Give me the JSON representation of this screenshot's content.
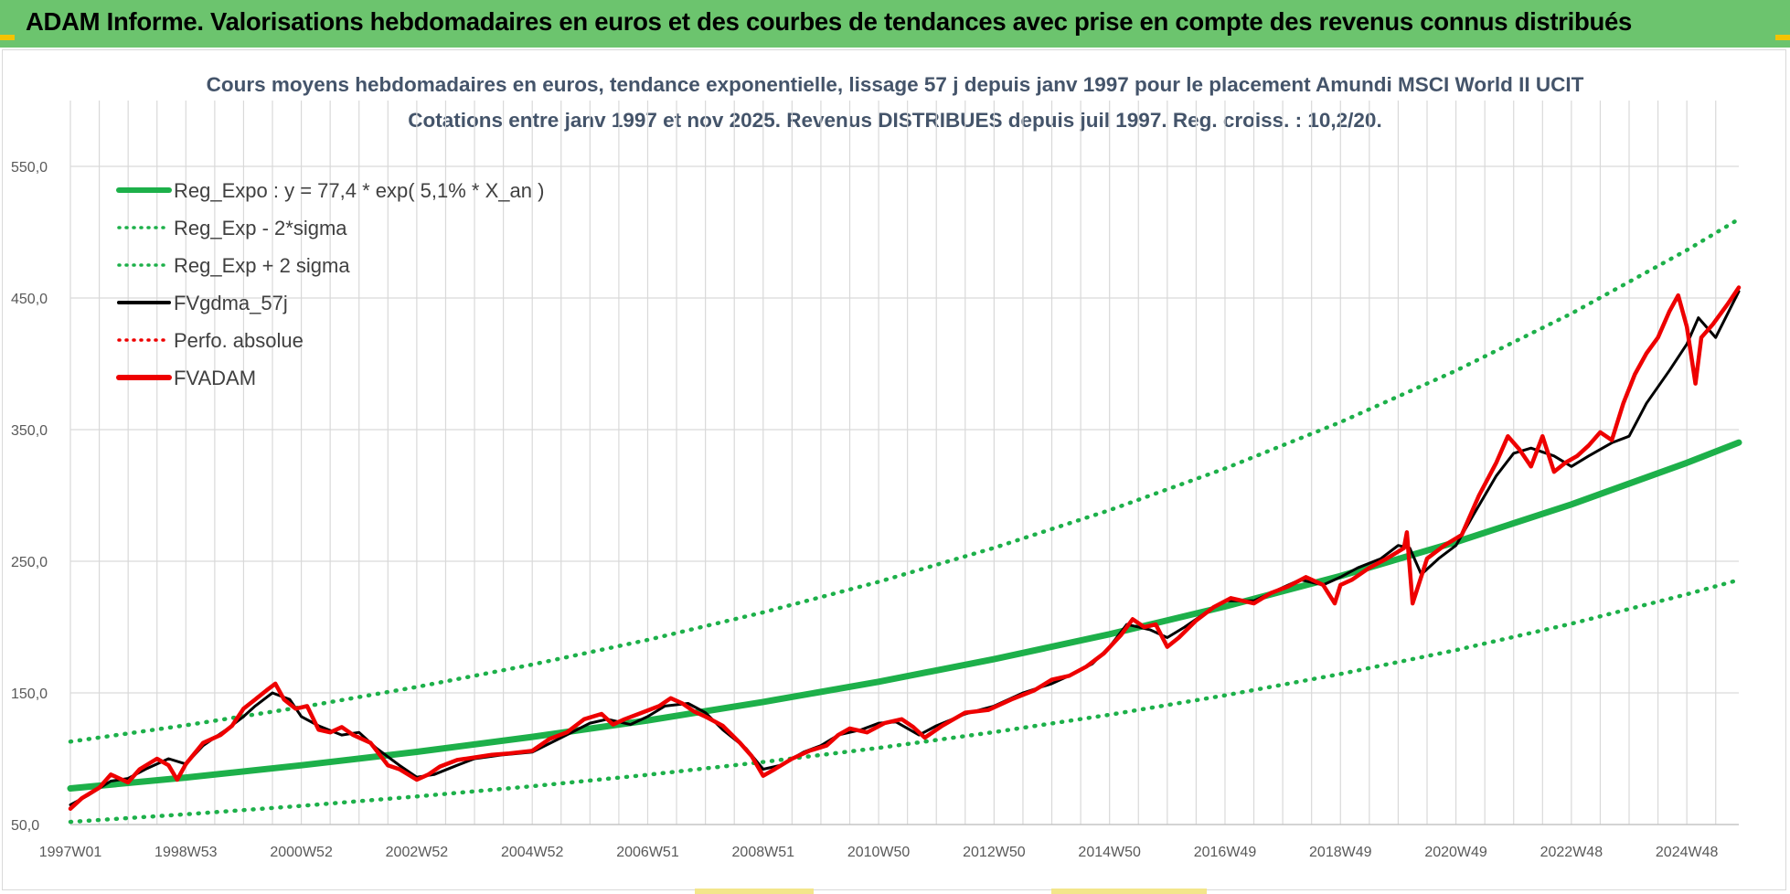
{
  "header": {
    "title": "ADAM Informe. Valorisations hebdomadaires en euros et des courbes de tendances avec prise en compte des revenus connus distribués"
  },
  "colors": {
    "header_bg": "#6cc46e",
    "trend_green": "#1db04a",
    "fv_red": "#ee0000",
    "gdma_black": "#000000",
    "grid": "#d9d9d9",
    "title_text": "#44546a"
  },
  "chart_data": {
    "type": "line",
    "title": "Cours moyens hebdomadaires en euros, tendance exponentielle, lissage 57 j depuis janv 1997 pour le placement Amundi MSCI World II UCIT",
    "subtitle": "Cotations entre janv 1997 et nov 2025. Revenus DISTRIBUES depuis juil 1997. Reg. croiss. : 10,2/20.",
    "xlabel": "",
    "ylabel": "",
    "x_tick_labels": [
      "1997W01",
      "1998W53",
      "2000W52",
      "2002W52",
      "2004W52",
      "2006W51",
      "2008W51",
      "2010W50",
      "2012W50",
      "2014W50",
      "2016W49",
      "2018W49",
      "2020W49",
      "2022W48",
      "2024W48"
    ],
    "x_tick_years": [
      1997.0,
      1999.0,
      2001.0,
      2003.0,
      2005.0,
      2007.0,
      2009.0,
      2011.0,
      2013.0,
      2015.0,
      2017.0,
      2019.0,
      2021.0,
      2023.0,
      2025.0
    ],
    "xlim": [
      1997.0,
      2025.9
    ],
    "y_tick_labels": [
      "50,0",
      "150,0",
      "250,0",
      "350,0",
      "450,0",
      "550,0"
    ],
    "y_ticks": [
      50,
      150,
      250,
      350,
      450,
      550
    ],
    "ylim": [
      50,
      600
    ],
    "grid": true,
    "legend_position": "top-left",
    "legend": [
      {
        "label": "Reg_Expo : y = 77,4 * exp( 5,1% *  X_an )",
        "color": "#1db04a",
        "style": "solid-thick"
      },
      {
        "label": "Reg_Exp - 2*sigma",
        "color": "#1db04a",
        "style": "dotted"
      },
      {
        "label": "Reg_Exp + 2 sigma",
        "color": "#1db04a",
        "style": "dotted"
      },
      {
        "label": "FVgdma_57j",
        "color": "#000000",
        "style": "solid"
      },
      {
        "label": "Perfo. absolue",
        "color": "#ee0000",
        "style": "dotted"
      },
      {
        "label": "FVADAM",
        "color": "#ee0000",
        "style": "solid-thick"
      }
    ],
    "series": [
      {
        "name": "Reg_Expo : y = 77,4 * exp( 5,1% *  X_an )",
        "x": [
          1997.0,
          1999.0,
          2001.0,
          2003.0,
          2005.0,
          2007.0,
          2009.0,
          2011.0,
          2013.0,
          2015.0,
          2017.0,
          2019.0,
          2021.0,
          2023.0,
          2025.0,
          2025.9
        ],
        "y": [
          77.4,
          85.7,
          95.0,
          105.2,
          116.6,
          129.1,
          143.1,
          158.5,
          175.6,
          194.6,
          215.6,
          238.8,
          264.6,
          293.2,
          324.8,
          340.2
        ]
      },
      {
        "name": "Reg_Exp - 2*sigma",
        "x": [
          1997.0,
          1999.0,
          2001.0,
          2003.0,
          2005.0,
          2007.0,
          2009.0,
          2011.0,
          2013.0,
          2015.0,
          2017.0,
          2019.0,
          2021.0,
          2023.0,
          2025.0,
          2025.9
        ],
        "y": [
          52.0,
          57.8,
          64.2,
          71.3,
          79.1,
          87.8,
          97.5,
          108.2,
          120.2,
          133.4,
          148.1,
          164.4,
          182.5,
          202.6,
          224.9,
          235.8
        ]
      },
      {
        "name": "Reg_Exp + 2 sigma",
        "x": [
          1997.0,
          1999.0,
          2001.0,
          2003.0,
          2005.0,
          2007.0,
          2009.0,
          2011.0,
          2013.0,
          2015.0,
          2017.0,
          2019.0,
          2021.0,
          2023.0,
          2025.0,
          2025.9
        ],
        "y": [
          113.0,
          125.4,
          139.2,
          154.5,
          171.5,
          190.3,
          211.2,
          234.4,
          260.2,
          288.8,
          320.5,
          355.7,
          394.8,
          438.2,
          486.4,
          509.9
        ]
      },
      {
        "name": "FVgdma_57j",
        "x": [
          1997.0,
          1997.3,
          1997.7,
          1998.0,
          1998.3,
          1998.7,
          1999.0,
          1999.3,
          1999.7,
          2000.0,
          2000.2,
          2000.5,
          2000.8,
          2001.0,
          2001.3,
          2001.7,
          2002.0,
          2002.3,
          2002.7,
          2003.0,
          2003.3,
          2003.7,
          2004.0,
          2004.5,
          2005.0,
          2005.5,
          2006.0,
          2006.3,
          2006.7,
          2007.0,
          2007.3,
          2007.7,
          2008.0,
          2008.3,
          2008.7,
          2009.0,
          2009.3,
          2009.7,
          2010.0,
          2010.3,
          2010.7,
          2011.0,
          2011.3,
          2011.7,
          2012.0,
          2012.5,
          2013.0,
          2013.5,
          2014.0,
          2014.3,
          2014.7,
          2015.0,
          2015.3,
          2015.7,
          2016.0,
          2016.3,
          2016.7,
          2017.0,
          2017.5,
          2018.0,
          2018.3,
          2018.7,
          2019.0,
          2019.3,
          2019.7,
          2020.0,
          2020.2,
          2020.4,
          2020.7,
          2021.0,
          2021.3,
          2021.7,
          2022.0,
          2022.3,
          2022.7,
          2023.0,
          2023.3,
          2023.7,
          2024.0,
          2024.3,
          2024.7,
          2025.0,
          2025.2,
          2025.5,
          2025.9
        ],
        "y": [
          65.0,
          72.0,
          83.0,
          85.0,
          92.0,
          100.0,
          96.0,
          110.0,
          122.0,
          132.0,
          140.0,
          150.0,
          145.0,
          132.0,
          125.0,
          118.0,
          120.0,
          108.0,
          95.0,
          86.0,
          88.0,
          95.0,
          100.0,
          103.0,
          105.0,
          116.0,
          127.0,
          130.0,
          126.0,
          132.0,
          140.0,
          142.0,
          135.0,
          122.0,
          108.0,
          92.0,
          95.0,
          105.0,
          110.0,
          118.0,
          122.0,
          127.0,
          128.0,
          118.0,
          125.0,
          134.0,
          140.0,
          150.0,
          157.0,
          163.0,
          172.0,
          185.0,
          202.0,
          198.0,
          192.0,
          200.0,
          212.0,
          220.0,
          220.0,
          230.0,
          236.0,
          232.0,
          238.0,
          245.0,
          252.0,
          262.0,
          260.0,
          240.0,
          252.0,
          262.0,
          285.0,
          315.0,
          332.0,
          336.0,
          330.0,
          322.0,
          330.0,
          340.0,
          345.0,
          370.0,
          395.0,
          415.0,
          435.0,
          420.0,
          455.0
        ]
      },
      {
        "name": "FVADAM",
        "x": [
          1997.0,
          1997.2,
          1997.5,
          1997.7,
          1998.0,
          1998.2,
          1998.5,
          1998.7,
          1998.85,
          1999.0,
          1999.3,
          1999.6,
          1999.8,
          2000.0,
          2000.2,
          2000.4,
          2000.55,
          2000.7,
          2000.9,
          2001.1,
          2001.3,
          2001.5,
          2001.7,
          2001.9,
          2002.2,
          2002.5,
          2002.7,
          2003.0,
          2003.2,
          2003.4,
          2003.7,
          2004.0,
          2004.3,
          2004.6,
          2005.0,
          2005.3,
          2005.6,
          2005.9,
          2006.2,
          2006.4,
          2006.6,
          2006.9,
          2007.2,
          2007.4,
          2007.6,
          2007.8,
          2008.0,
          2008.3,
          2008.6,
          2008.8,
          2009.0,
          2009.2,
          2009.5,
          2009.8,
          2010.1,
          2010.3,
          2010.5,
          2010.8,
          2011.1,
          2011.4,
          2011.6,
          2011.8,
          2012.1,
          2012.5,
          2012.9,
          2013.3,
          2013.7,
          2014.0,
          2014.3,
          2014.6,
          2014.9,
          2015.2,
          2015.4,
          2015.6,
          2015.8,
          2016.0,
          2016.2,
          2016.5,
          2016.8,
          2017.1,
          2017.5,
          2017.8,
          2018.1,
          2018.4,
          2018.7,
          2018.9,
          2019.0,
          2019.2,
          2019.5,
          2019.8,
          2020.1,
          2020.15,
          2020.25,
          2020.5,
          2020.8,
          2021.1,
          2021.4,
          2021.7,
          2021.9,
          2022.1,
          2022.3,
          2022.5,
          2022.7,
          2022.9,
          2023.1,
          2023.3,
          2023.5,
          2023.7,
          2023.9,
          2024.1,
          2024.3,
          2024.5,
          2024.7,
          2024.85,
          2025.0,
          2025.15,
          2025.25,
          2025.45,
          2025.7,
          2025.9
        ],
        "y": [
          62.0,
          70.0,
          78.0,
          88.0,
          82.0,
          92.0,
          100.0,
          95.0,
          84.0,
          96.0,
          112.0,
          118.0,
          125.0,
          138.0,
          145.0,
          152.0,
          157.0,
          145.0,
          138.0,
          140.0,
          122.0,
          120.0,
          124.0,
          118.0,
          112.0,
          95.0,
          92.0,
          84.0,
          88.0,
          94.0,
          99.0,
          101.0,
          103.0,
          104.0,
          106.0,
          115.0,
          120.0,
          130.0,
          134.0,
          126.0,
          130.0,
          135.0,
          140.0,
          146.0,
          142.0,
          136.0,
          132.0,
          125.0,
          112.0,
          102.0,
          87.0,
          92.0,
          100.0,
          106.0,
          110.0,
          118.0,
          123.0,
          120.0,
          127.0,
          130.0,
          124.0,
          116.0,
          125.0,
          135.0,
          137.0,
          145.0,
          152.0,
          160.0,
          163.0,
          170.0,
          180.0,
          194.0,
          206.0,
          200.0,
          202.0,
          185.0,
          192.0,
          205.0,
          215.0,
          222.0,
          218.0,
          226.0,
          231.0,
          238.0,
          232.0,
          218.0,
          232.0,
          236.0,
          245.0,
          252.0,
          260.0,
          272.0,
          218.0,
          252.0,
          262.0,
          270.0,
          300.0,
          325.0,
          345.0,
          335.0,
          322.0,
          345.0,
          318.0,
          325.0,
          330.0,
          338.0,
          348.0,
          342.0,
          370.0,
          392.0,
          408.0,
          420.0,
          440.0,
          452.0,
          428.0,
          385.0,
          420.0,
          430.0,
          445.0,
          458.0
        ]
      }
    ]
  }
}
